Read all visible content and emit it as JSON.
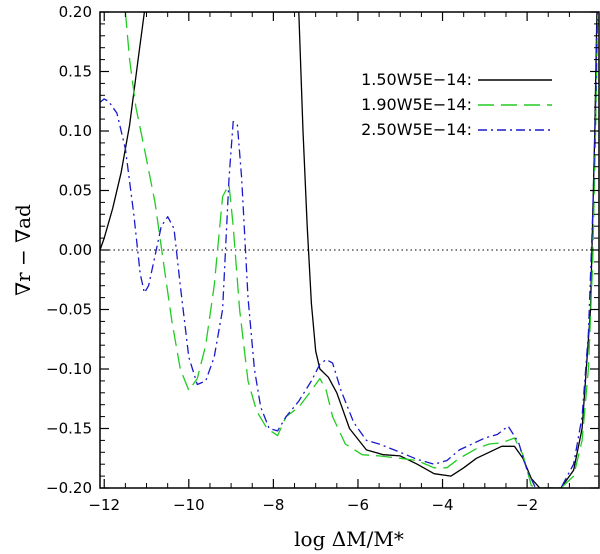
{
  "chart_data": {
    "type": "line",
    "title": "",
    "xlabel": "log  ΔM/M*",
    "ylabel": "∇r − ∇ad",
    "xlim": [
      -12.1,
      -0.3
    ],
    "ylim": [
      -0.2,
      0.2
    ],
    "xticks": [
      -12,
      -10,
      -8,
      -6,
      -4,
      -2
    ],
    "xtick_labels": [
      "−12",
      "−10",
      "−8",
      "−6",
      "−4",
      "−2"
    ],
    "yticks": [
      0.2,
      0.15,
      0.1,
      0.05,
      0.0,
      -0.05,
      -0.1,
      -0.15,
      -0.2
    ],
    "ytick_labels": [
      "0.20",
      "0.15",
      "0.10",
      "0.05",
      "0.00",
      "−0.05",
      "−0.10",
      "−0.15",
      "−0.20"
    ],
    "zero_line": 0.0,
    "legend_position": "top-right",
    "series": [
      {
        "name": "1.50W5E−14:",
        "color": "#000000",
        "dash": "solid",
        "points": [
          [
            -12.1,
            0.0
          ],
          [
            -12.0,
            0.01
          ],
          [
            -11.8,
            0.035
          ],
          [
            -11.6,
            0.065
          ],
          [
            -11.4,
            0.105
          ],
          [
            -11.2,
            0.16
          ],
          [
            -11.05,
            0.2
          ],
          [
            -7.4,
            0.2
          ],
          [
            -7.3,
            0.1
          ],
          [
            -7.2,
            0.02
          ],
          [
            -7.1,
            -0.045
          ],
          [
            -7.0,
            -0.085
          ],
          [
            -6.9,
            -0.1
          ],
          [
            -6.7,
            -0.107
          ],
          [
            -6.5,
            -0.12
          ],
          [
            -6.2,
            -0.15
          ],
          [
            -5.8,
            -0.168
          ],
          [
            -5.4,
            -0.172
          ],
          [
            -5.0,
            -0.173
          ],
          [
            -4.6,
            -0.18
          ],
          [
            -4.2,
            -0.188
          ],
          [
            -3.8,
            -0.19
          ],
          [
            -3.5,
            -0.183
          ],
          [
            -3.2,
            -0.175
          ],
          [
            -2.9,
            -0.17
          ],
          [
            -2.6,
            -0.165
          ],
          [
            -2.3,
            -0.165
          ],
          [
            -2.1,
            -0.175
          ],
          [
            -1.9,
            -0.192
          ],
          [
            -1.7,
            -0.2
          ],
          [
            -1.2,
            -0.2
          ],
          [
            -0.9,
            -0.185
          ],
          [
            -0.7,
            -0.15
          ],
          [
            -0.5,
            -0.05
          ],
          [
            -0.4,
            0.1
          ],
          [
            -0.35,
            0.2
          ]
        ]
      },
      {
        "name": "1.90W5E−14:",
        "color": "#22cc22",
        "dash": "long-dash",
        "points": [
          [
            -11.5,
            0.2
          ],
          [
            -11.4,
            0.16
          ],
          [
            -11.25,
            0.12
          ],
          [
            -11.05,
            0.085
          ],
          [
            -10.8,
            0.04
          ],
          [
            -10.6,
            -0.01
          ],
          [
            -10.4,
            -0.06
          ],
          [
            -10.2,
            -0.1
          ],
          [
            -10.0,
            -0.118
          ],
          [
            -9.8,
            -0.108
          ],
          [
            -9.6,
            -0.08
          ],
          [
            -9.4,
            -0.03
          ],
          [
            -9.2,
            0.045
          ],
          [
            -9.05,
            0.055
          ],
          [
            -8.95,
            0.02
          ],
          [
            -8.8,
            -0.05
          ],
          [
            -8.6,
            -0.11
          ],
          [
            -8.4,
            -0.135
          ],
          [
            -8.15,
            -0.15
          ],
          [
            -7.9,
            -0.156
          ],
          [
            -7.7,
            -0.14
          ],
          [
            -7.4,
            -0.132
          ],
          [
            -7.1,
            -0.118
          ],
          [
            -6.9,
            -0.108
          ],
          [
            -6.75,
            -0.118
          ],
          [
            -6.6,
            -0.14
          ],
          [
            -6.3,
            -0.163
          ],
          [
            -5.9,
            -0.172
          ],
          [
            -5.5,
            -0.173
          ],
          [
            -5.0,
            -0.175
          ],
          [
            -4.6,
            -0.177
          ],
          [
            -4.2,
            -0.183
          ],
          [
            -3.9,
            -0.183
          ],
          [
            -3.6,
            -0.175
          ],
          [
            -3.2,
            -0.167
          ],
          [
            -2.9,
            -0.163
          ],
          [
            -2.6,
            -0.162
          ],
          [
            -2.3,
            -0.158
          ],
          [
            -2.1,
            -0.172
          ],
          [
            -1.9,
            -0.198
          ],
          [
            -1.7,
            -0.2
          ],
          [
            -1.2,
            -0.2
          ],
          [
            -0.9,
            -0.19
          ],
          [
            -0.7,
            -0.16
          ],
          [
            -0.55,
            -0.1
          ],
          [
            -0.45,
            -0.01
          ],
          [
            -0.38,
            0.1
          ],
          [
            -0.33,
            0.2
          ]
        ]
      },
      {
        "name": "2.50W5E−14:",
        "color": "#1a1acc",
        "dash": "dash-dot",
        "points": [
          [
            -12.1,
            0.124
          ],
          [
            -12.0,
            0.127
          ],
          [
            -11.9,
            0.125
          ],
          [
            -11.7,
            0.115
          ],
          [
            -11.5,
            0.085
          ],
          [
            -11.3,
            0.03
          ],
          [
            -11.15,
            -0.02
          ],
          [
            -11.05,
            -0.036
          ],
          [
            -10.95,
            -0.03
          ],
          [
            -10.8,
            -0.005
          ],
          [
            -10.65,
            0.02
          ],
          [
            -10.5,
            0.028
          ],
          [
            -10.35,
            0.018
          ],
          [
            -10.2,
            -0.03
          ],
          [
            -10.0,
            -0.09
          ],
          [
            -9.8,
            -0.113
          ],
          [
            -9.6,
            -0.11
          ],
          [
            -9.4,
            -0.09
          ],
          [
            -9.2,
            -0.05
          ],
          [
            -9.05,
            0.06
          ],
          [
            -8.95,
            0.108
          ],
          [
            -8.85,
            0.105
          ],
          [
            -8.75,
            0.06
          ],
          [
            -8.6,
            -0.04
          ],
          [
            -8.45,
            -0.1
          ],
          [
            -8.3,
            -0.132
          ],
          [
            -8.1,
            -0.15
          ],
          [
            -7.9,
            -0.152
          ],
          [
            -7.7,
            -0.14
          ],
          [
            -7.4,
            -0.127
          ],
          [
            -7.1,
            -0.11
          ],
          [
            -6.9,
            -0.096
          ],
          [
            -6.75,
            -0.092
          ],
          [
            -6.6,
            -0.095
          ],
          [
            -6.4,
            -0.118
          ],
          [
            -6.1,
            -0.145
          ],
          [
            -5.8,
            -0.16
          ],
          [
            -5.5,
            -0.163
          ],
          [
            -5.0,
            -0.17
          ],
          [
            -4.6,
            -0.176
          ],
          [
            -4.2,
            -0.18
          ],
          [
            -3.9,
            -0.177
          ],
          [
            -3.6,
            -0.168
          ],
          [
            -3.3,
            -0.163
          ],
          [
            -3.0,
            -0.158
          ],
          [
            -2.7,
            -0.155
          ],
          [
            -2.45,
            -0.148
          ],
          [
            -2.2,
            -0.162
          ],
          [
            -2.0,
            -0.185
          ],
          [
            -1.8,
            -0.2
          ],
          [
            -1.2,
            -0.2
          ],
          [
            -0.9,
            -0.18
          ],
          [
            -0.7,
            -0.14
          ],
          [
            -0.55,
            -0.07
          ],
          [
            -0.45,
            0.03
          ],
          [
            -0.38,
            0.12
          ],
          [
            -0.34,
            0.2
          ]
        ]
      }
    ]
  }
}
